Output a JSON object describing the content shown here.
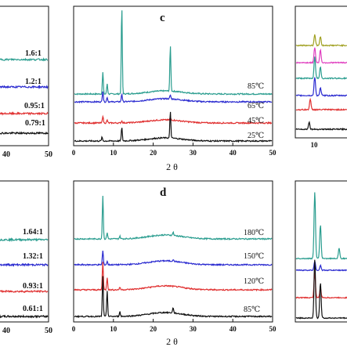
{
  "chart_data": [
    {
      "panel": "left-top (cropped)",
      "type": "line",
      "xlim": [
        0,
        50
      ],
      "x_ticks": [
        "40",
        "50"
      ],
      "series": [
        {
          "name": "1.6:1",
          "color": "#2a9d8f"
        },
        {
          "name": "1.2:1",
          "color": "#2b2bd0"
        },
        {
          "name": "0.95:1",
          "color": "#e03030"
        },
        {
          "name": "0.79:1",
          "color": "#111111"
        }
      ]
    },
    {
      "panel": "c",
      "type": "line",
      "xlabel": "2θ",
      "xlim": [
        0,
        50
      ],
      "x_ticks": [
        "0",
        "10",
        "20",
        "30",
        "40",
        "50"
      ],
      "series": [
        {
          "name": "85℃",
          "color": "#2a9d8f",
          "peaks": [
            {
              "x": 7.2,
              "h": 0.25
            },
            {
              "x": 8.3,
              "h": 0.12
            },
            {
              "x": 12.0,
              "h": 1.0
            },
            {
              "x": 24.3,
              "h": 0.52
            }
          ]
        },
        {
          "name": "65℃",
          "color": "#2b2bd0",
          "peaks": [
            {
              "x": 7.2,
              "h": 0.35
            },
            {
              "x": 8.3,
              "h": 0.15
            },
            {
              "x": 12.0,
              "h": 0.25
            },
            {
              "x": 24.3,
              "h": 0.12
            }
          ]
        },
        {
          "name": "45℃",
          "color": "#e03030",
          "peaks": [
            {
              "x": 7.2,
              "h": 0.3
            },
            {
              "x": 8.3,
              "h": 0.12
            },
            {
              "x": 12.0,
              "h": 0.08
            },
            {
              "x": 24.3,
              "h": 0.08
            }
          ]
        },
        {
          "name": "25℃",
          "color": "#111111",
          "peaks": [
            {
              "x": 7.0,
              "h": 0.08
            },
            {
              "x": 12.0,
              "h": 0.28
            },
            {
              "x": 24.3,
              "h": 0.55
            }
          ]
        }
      ]
    },
    {
      "panel": "right-top (cropped)",
      "type": "line",
      "x_ticks": [
        "10"
      ],
      "series": [
        {
          "color": "#a0a020"
        },
        {
          "color": "#e040c0"
        },
        {
          "color": "#2a9d8f"
        },
        {
          "color": "#2b2bd0"
        },
        {
          "color": "#e03030"
        },
        {
          "color": "#111111"
        }
      ]
    },
    {
      "panel": "left-bottom (cropped)",
      "type": "line",
      "xlim": [
        0,
        50
      ],
      "x_ticks": [
        "40",
        "50"
      ],
      "series": [
        {
          "name": "1.64:1",
          "color": "#2a9d8f"
        },
        {
          "name": "1.32:1",
          "color": "#2b2bd0"
        },
        {
          "name": "0.93:1",
          "color": "#e03030"
        },
        {
          "name": "0.61:1",
          "color": "#111111"
        }
      ]
    },
    {
      "panel": "d",
      "type": "line",
      "xlabel": "2θ",
      "xlim": [
        0,
        50
      ],
      "x_ticks": [
        "0",
        "10",
        "20",
        "30",
        "40",
        "50"
      ],
      "series": [
        {
          "name": "180℃",
          "color": "#2a9d8f",
          "peaks": [
            {
              "x": 7.2,
              "h": 1.0
            },
            {
              "x": 8.3,
              "h": 0.15
            },
            {
              "x": 11.5,
              "h": 0.06
            },
            {
              "x": 25.0,
              "h": 0.08
            }
          ]
        },
        {
          "name": "150℃",
          "color": "#2b2bd0",
          "peaks": [
            {
              "x": 7.2,
              "h": 0.4
            },
            {
              "x": 8.3,
              "h": 0.1
            },
            {
              "x": 25.0,
              "h": 0.05
            }
          ]
        },
        {
          "name": "120℃",
          "color": "#e03030",
          "peaks": [
            {
              "x": 7.2,
              "h": 0.9
            },
            {
              "x": 8.3,
              "h": 0.4
            },
            {
              "x": 11.5,
              "h": 0.08
            }
          ]
        },
        {
          "name": "85℃",
          "color": "#111111",
          "peaks": [
            {
              "x": 7.2,
              "h": 0.85
            },
            {
              "x": 8.3,
              "h": 0.55
            },
            {
              "x": 11.5,
              "h": 0.1
            },
            {
              "x": 25.0,
              "h": 0.12
            }
          ]
        }
      ]
    },
    {
      "panel": "right-bottom (cropped)",
      "type": "line",
      "series": [
        {
          "color": "#2a9d8f"
        },
        {
          "color": "#2b2bd0"
        },
        {
          "color": "#e03030"
        },
        {
          "color": "#111111"
        }
      ]
    }
  ],
  "labels": {
    "c": "c",
    "d": "d",
    "xlabel_c": "2θ",
    "xlabel_d": "2θ",
    "tick_40": "40",
    "tick_50": "50",
    "tick_10": "10"
  }
}
